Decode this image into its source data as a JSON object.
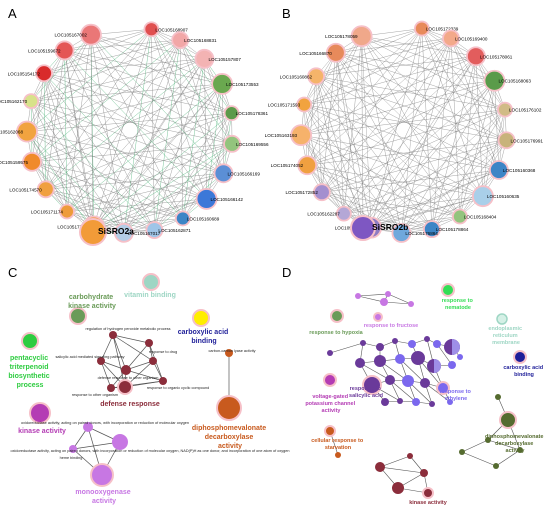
{
  "panels": [
    {
      "id": "A",
      "letter": "A",
      "hub": "SiSRO2a",
      "nodes": [
        {
          "label": "LOC105168907",
          "color": "#e05050"
        },
        {
          "label": "LOC105168831",
          "color": "#f2a7a7"
        },
        {
          "label": "LOC105157807",
          "color": "#f3b3b3"
        },
        {
          "label": "LOC105173553",
          "color": "#6aa84f"
        },
        {
          "label": "LOC105178361",
          "color": "#5c9a4a"
        },
        {
          "label": "LOC105169556",
          "color": "#93c47d"
        },
        {
          "label": "LOC105166169",
          "color": "#5b8fd6"
        },
        {
          "label": "LOC105166142",
          "color": "#3c78d8"
        },
        {
          "label": "LOC105160689",
          "color": "#3d85c6"
        },
        {
          "label": "LOC105162871",
          "color": "#9fc5e8"
        },
        {
          "label": "LOC105167017",
          "color": "#b4cde6"
        },
        {
          "label": "LOC105177093",
          "color": "#f29b38"
        },
        {
          "label": "LOC105171174",
          "color": "#ee9b3a"
        },
        {
          "label": "LOC105174570",
          "color": "#f0a040"
        },
        {
          "label": "LOC105159575",
          "color": "#f08a2a"
        },
        {
          "label": "LOC105162068",
          "color": "#f1a33f"
        },
        {
          "label": "LOC105162170",
          "color": "#d8e28a"
        },
        {
          "label": "LOC105154172",
          "color": "#d92b2b"
        },
        {
          "label": "LOC105159672",
          "color": "#e45555"
        },
        {
          "label": "LOC105167002",
          "color": "#ea7777"
        }
      ]
    },
    {
      "id": "B",
      "letter": "B",
      "hub": "SiSRO2b",
      "nodes": [
        {
          "label": "LOC105172339",
          "color": "#e88a5a"
        },
        {
          "label": "LOC105169400",
          "color": "#f3a98a"
        },
        {
          "label": "LOC105178061",
          "color": "#e25d5d"
        },
        {
          "label": "LOC105168063",
          "color": "#5a9b4a"
        },
        {
          "label": "LOC105176102",
          "color": "#d1bb86"
        },
        {
          "label": "LOC105176991",
          "color": "#c8b37b"
        },
        {
          "label": "LOC105160368",
          "color": "#3d85c6"
        },
        {
          "label": "LOC105160635",
          "color": "#a9cfe9"
        },
        {
          "label": "LOC105168404",
          "color": "#93c47d"
        },
        {
          "label": "LOC105178864",
          "color": "#3d85c6"
        },
        {
          "label": "LOC105176864",
          "color": "#6fa8dc"
        },
        {
          "label": "LOC105163486",
          "color": "#8e7cc3"
        },
        {
          "label": "LOC105162287",
          "color": "#b4a7d6"
        },
        {
          "label": "LOC105172852",
          "color": "#a38fcf"
        },
        {
          "label": "LOC105174052",
          "color": "#f0a040"
        },
        {
          "label": "LOC105163193",
          "color": "#f6b26b"
        },
        {
          "label": "LOC105171593",
          "color": "#f1a33f"
        },
        {
          "label": "LOC105160862",
          "color": "#f5b46a"
        },
        {
          "label": "LOC105166870",
          "color": "#e78a5b"
        },
        {
          "label": "LOC105178059",
          "color": "#f0a88a"
        }
      ]
    },
    {
      "id": "C",
      "letter": "C",
      "groups": [
        {
          "label": "carbohydrate kinase activity",
          "color": "#6a9b58"
        },
        {
          "label": "vitamin binding",
          "color": "#9ed6c4"
        },
        {
          "label": "carboxylic acid binding",
          "color": "#1f1f99"
        },
        {
          "label": "pentacyclic triterpenoid biosynthetic process",
          "color": "#2ecc40"
        },
        {
          "label": "defense response",
          "color": "#8b2d3b"
        },
        {
          "label": "kinase activity",
          "color": "#b43cb4"
        },
        {
          "label": "diphosphomevalonate decarboxylase activity",
          "color": "#c85a1e"
        },
        {
          "label": "monooxygenase activity",
          "color": "#c777e3"
        }
      ],
      "terms": [
        "regulation of hydrogen peroxide metabolic process",
        "salicylic acid mediated signaling pathway",
        "response to drug",
        "defense response to other organism",
        "response to organic cyclic compound",
        "response to other organism",
        "carbon-carbon lyase activity",
        "oxidoreductase activity, acting on paired donors, with incorporation or reduction of molecular oxygen",
        "heme binding",
        "oxidoreductase activity, acting on paired donors, with incorporation or reduction of molecular oxygen, NAD(P)H as one donor, and incorporation of one atom of oxygen"
      ]
    },
    {
      "id": "D",
      "letter": "D",
      "groups": [
        {
          "label": "response to nematode",
          "color": "#33dd55"
        },
        {
          "label": "response to hypoxia",
          "color": "#6a9b58"
        },
        {
          "label": "response to fructose",
          "color": "#c777e3"
        },
        {
          "label": "endoplasmic reticulum membrane",
          "color": "#9ed6c4"
        },
        {
          "label": "voltage-gated potassium channel activity",
          "color": "#b43cb4"
        },
        {
          "label": "response to salicylic acid",
          "color": "#6a3a9a"
        },
        {
          "label": "response to ethylene",
          "color": "#7b68ee"
        },
        {
          "label": "carboxylic acid binding",
          "color": "#1f1f99"
        },
        {
          "label": "diphosphomevalonate decarboxylase activity",
          "color": "#556b2f"
        },
        {
          "label": "cellular response to starvation",
          "color": "#c85a1e"
        },
        {
          "label": "kinase activity",
          "color": "#8b2d3b"
        }
      ]
    }
  ]
}
